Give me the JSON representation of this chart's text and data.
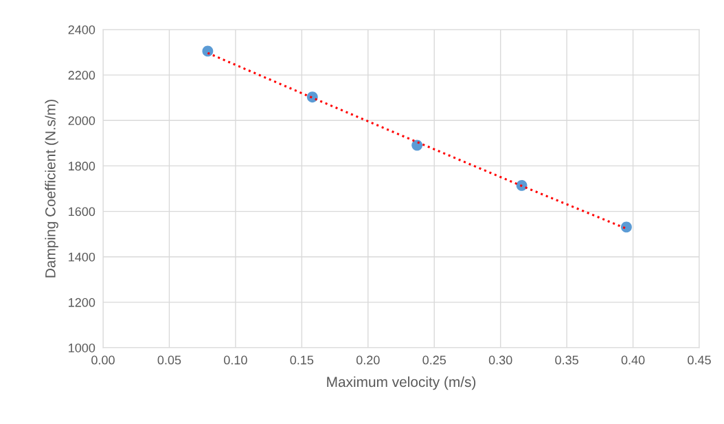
{
  "chart_data": {
    "type": "scatter",
    "xlabel": "Maximum velocity (m/s)",
    "ylabel": "Damping Coefficient (N.s/m)",
    "series": [
      {
        "color": "#5b9bd5",
        "marker": "circle",
        "x": [
          0.079,
          0.158,
          0.237,
          0.316,
          0.395
        ],
        "values": [
          2305,
          2103,
          1891,
          1714,
          1531
        ]
      },
      {
        "type": "line",
        "color": "#ff0000",
        "line_style": "dotted",
        "x": [
          0.079,
          0.158,
          0.237,
          0.316,
          0.395
        ],
        "values": [
          2297,
          2100,
          1905,
          1712,
          1524
        ]
      }
    ],
    "xlim": [
      0,
      0.45
    ],
    "xticks": [
      {
        "value": 0,
        "label": "0.00"
      },
      {
        "value": 0.05,
        "label": "0.05"
      },
      {
        "value": 0.1,
        "label": "0.10"
      },
      {
        "value": 0.15,
        "label": "0.15"
      },
      {
        "value": 0.2,
        "label": "0.20"
      },
      {
        "value": 0.25,
        "label": "0.25"
      },
      {
        "value": 0.3,
        "label": "0.30"
      },
      {
        "value": 0.35,
        "label": "0.35"
      },
      {
        "value": 0.4,
        "label": "0.40"
      },
      {
        "value": 0.45,
        "label": "0.45"
      }
    ],
    "ylim": [
      1000,
      2400
    ],
    "yticks": [
      1000,
      1200,
      1400,
      1600,
      1800,
      2000,
      2200,
      2400
    ],
    "grid": true
  }
}
